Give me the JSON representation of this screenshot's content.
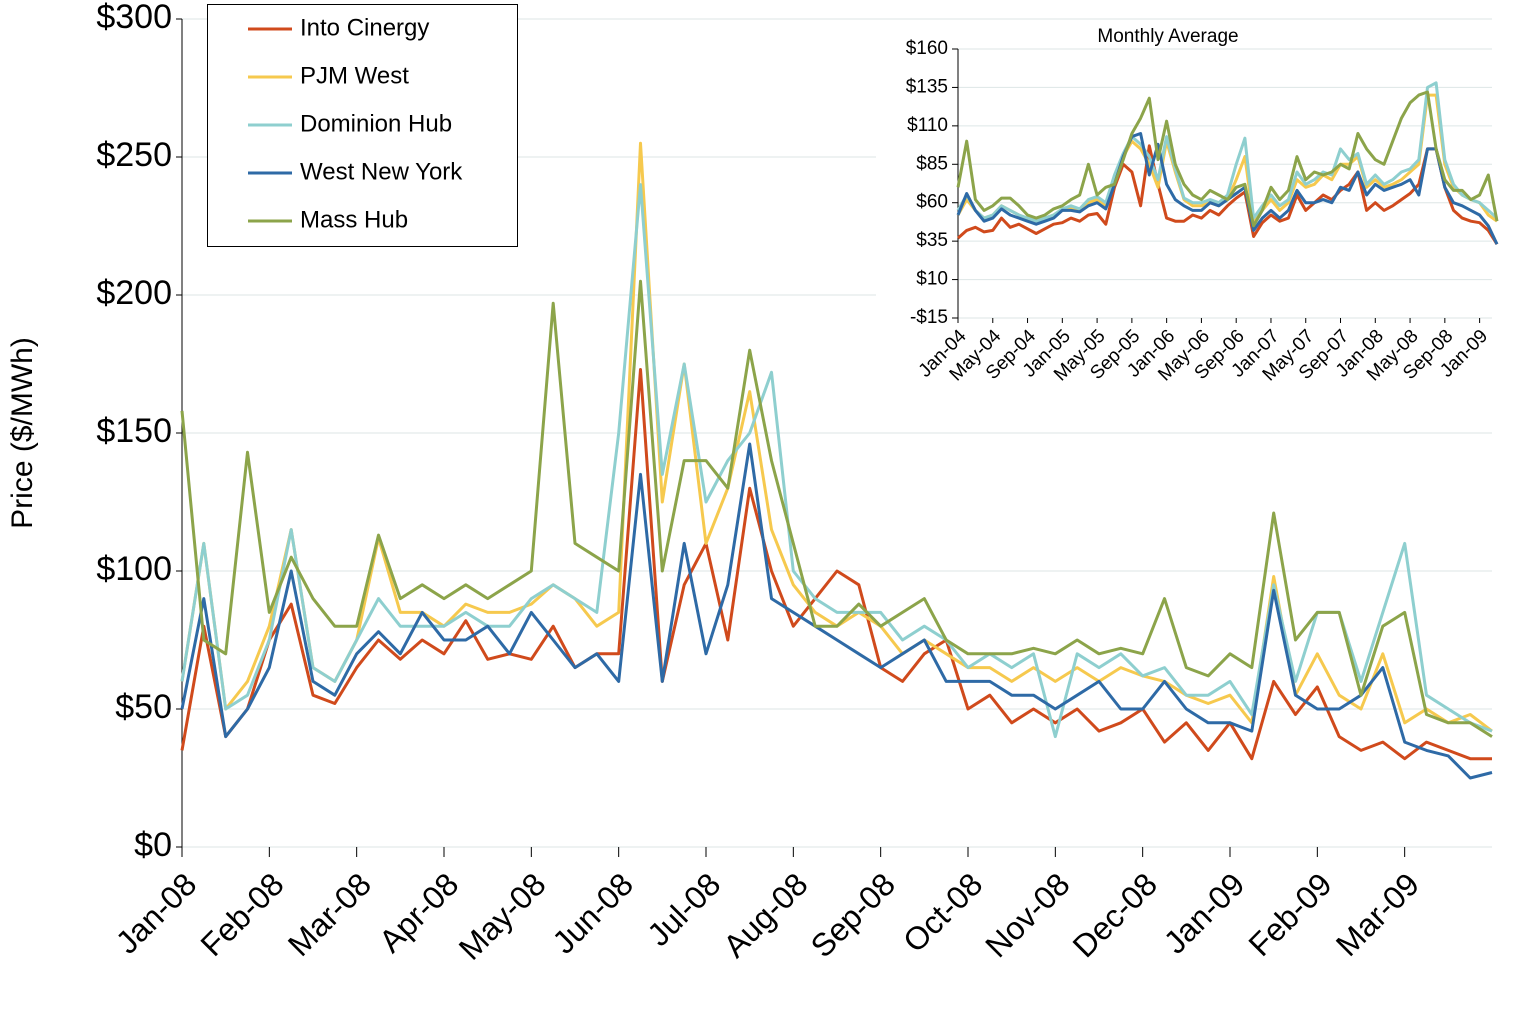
{
  "chart_data": [
    {
      "type": "line",
      "y_label": "Price ($/MWh)",
      "legend": "upper left",
      "grid": true,
      "categories": [
        "Jan-08",
        null,
        null,
        null,
        "Feb-08",
        null,
        null,
        null,
        "Mar-08",
        null,
        null,
        null,
        "Apr-08",
        null,
        null,
        null,
        "May-08",
        null,
        null,
        null,
        "Jun-08",
        null,
        null,
        null,
        "Jul-08",
        null,
        null,
        null,
        "Aug-08",
        null,
        null,
        null,
        "Sep-08",
        null,
        null,
        null,
        "Oct-08",
        null,
        null,
        null,
        "Nov-08",
        null,
        null,
        null,
        "Dec-08",
        null,
        null,
        null,
        "Jan-09",
        null,
        null,
        null,
        "Feb-09",
        null,
        null,
        null,
        "Mar-09",
        null,
        null,
        null,
        null
      ],
      "ylim": [
        0,
        300
      ],
      "yticks": [
        {
          "value": 0,
          "label": "$0"
        },
        {
          "value": 50,
          "label": "$50"
        },
        {
          "value": 100,
          "label": "$100"
        },
        {
          "value": 150,
          "label": "$150"
        },
        {
          "value": 200,
          "label": "$200"
        },
        {
          "value": 250,
          "label": "$250"
        },
        {
          "value": 300,
          "label": "$300"
        }
      ],
      "series": [
        {
          "name": "Into Cinergy",
          "color": "#d04a1c",
          "values": [
            35,
            80,
            40,
            50,
            75,
            88,
            55,
            52,
            65,
            75,
            68,
            75,
            70,
            82,
            68,
            70,
            68,
            80,
            65,
            70,
            70,
            173,
            60,
            95,
            110,
            75,
            130,
            100,
            80,
            90,
            100,
            95,
            65,
            60,
            70,
            75,
            50,
            55,
            45,
            50,
            45,
            50,
            42,
            45,
            50,
            38,
            45,
            35,
            45,
            32,
            60,
            48,
            58,
            40,
            35,
            38,
            32,
            38,
            35,
            32,
            32
          ]
        },
        {
          "name": "PJM West",
          "color": "#f6c94e",
          "values": [
            60,
            110,
            50,
            60,
            80,
            115,
            65,
            60,
            75,
            112,
            85,
            85,
            80,
            88,
            85,
            85,
            88,
            95,
            90,
            80,
            85,
            255,
            125,
            175,
            110,
            130,
            165,
            115,
            95,
            85,
            80,
            85,
            80,
            70,
            75,
            70,
            65,
            65,
            60,
            65,
            60,
            65,
            60,
            65,
            62,
            60,
            55,
            52,
            55,
            45,
            98,
            55,
            70,
            55,
            50,
            70,
            45,
            50,
            45,
            48,
            42
          ]
        },
        {
          "name": "Dominion Hub",
          "color": "#8ecfcf",
          "values": [
            60,
            110,
            50,
            55,
            75,
            115,
            65,
            60,
            75,
            90,
            80,
            80,
            80,
            85,
            80,
            80,
            90,
            95,
            90,
            85,
            150,
            240,
            135,
            175,
            125,
            140,
            150,
            172,
            100,
            90,
            85,
            85,
            85,
            75,
            80,
            75,
            65,
            70,
            65,
            70,
            40,
            70,
            65,
            70,
            62,
            65,
            55,
            55,
            60,
            48,
            95,
            60,
            85,
            85,
            60,
            85,
            110,
            55,
            50,
            45,
            42
          ]
        },
        {
          "name": "West New York",
          "color": "#2e6aa6",
          "values": [
            50,
            90,
            40,
            50,
            65,
            100,
            60,
            55,
            70,
            78,
            70,
            85,
            75,
            75,
            80,
            70,
            85,
            75,
            65,
            70,
            60,
            135,
            60,
            110,
            70,
            95,
            146,
            90,
            85,
            80,
            75,
            70,
            65,
            70,
            75,
            60,
            60,
            60,
            55,
            55,
            50,
            55,
            60,
            50,
            50,
            60,
            50,
            45,
            45,
            42,
            93,
            55,
            50,
            50,
            55,
            65,
            38,
            35,
            33,
            25,
            27
          ]
        },
        {
          "name": "Mass Hub",
          "color": "#8ca44a",
          "values": [
            158,
            75,
            70,
            143,
            85,
            105,
            90,
            80,
            80,
            113,
            90,
            95,
            90,
            95,
            90,
            95,
            100,
            197,
            110,
            105,
            100,
            205,
            100,
            140,
            140,
            130,
            180,
            140,
            110,
            80,
            80,
            88,
            80,
            85,
            90,
            75,
            70,
            70,
            70,
            72,
            70,
            75,
            70,
            72,
            70,
            90,
            65,
            62,
            70,
            65,
            121,
            75,
            85,
            85,
            55,
            80,
            85,
            48,
            45,
            45,
            40
          ]
        }
      ]
    },
    {
      "type": "line",
      "title": "Monthly Average",
      "grid": true,
      "categories": [
        "Jan-04",
        null,
        null,
        null,
        "May-04",
        null,
        null,
        null,
        "Sep-04",
        null,
        null,
        null,
        "Jan-05",
        null,
        null,
        null,
        "May-05",
        null,
        null,
        null,
        "Sep-05",
        null,
        null,
        null,
        "Jan-06",
        null,
        null,
        null,
        "May-06",
        null,
        null,
        null,
        "Sep-06",
        null,
        null,
        null,
        "Jan-07",
        null,
        null,
        null,
        "May-07",
        null,
        null,
        null,
        "Sep-07",
        null,
        null,
        null,
        "Jan-08",
        null,
        null,
        null,
        "May-08",
        null,
        null,
        null,
        "Sep-08",
        null,
        null,
        null,
        "Jan-09",
        null,
        null
      ],
      "ylim": [
        -15,
        160
      ],
      "yticks": [
        {
          "value": -15,
          "label": "-$15"
        },
        {
          "value": 10,
          "label": "$10"
        },
        {
          "value": 35,
          "label": "$35"
        },
        {
          "value": 60,
          "label": "$60"
        },
        {
          "value": 85,
          "label": "$85"
        },
        {
          "value": 110,
          "label": "$110"
        },
        {
          "value": 135,
          "label": "$135"
        },
        {
          "value": 160,
          "label": "$160"
        }
      ],
      "series": [
        {
          "color": "#d04a1c",
          "values": [
            37,
            42,
            44,
            41,
            42,
            50,
            44,
            46,
            43,
            40,
            43,
            46,
            47,
            50,
            48,
            52,
            53,
            46,
            70,
            85,
            80,
            58,
            97,
            72,
            50,
            48,
            48,
            52,
            50,
            55,
            52,
            58,
            63,
            67,
            38,
            47,
            52,
            48,
            50,
            65,
            55,
            60,
            65,
            62,
            68,
            72,
            80,
            55,
            60,
            55,
            58,
            62,
            66,
            72,
            95,
            95,
            70,
            55,
            50,
            48,
            47,
            42,
            33
          ]
        },
        {
          "color": "#f6c94e",
          "values": [
            52,
            62,
            55,
            50,
            52,
            58,
            55,
            52,
            50,
            48,
            50,
            52,
            55,
            56,
            55,
            60,
            62,
            58,
            75,
            90,
            100,
            95,
            85,
            70,
            100,
            80,
            62,
            58,
            58,
            60,
            58,
            62,
            75,
            90,
            48,
            55,
            62,
            55,
            60,
            75,
            70,
            72,
            78,
            75,
            85,
            85,
            90,
            70,
            75,
            70,
            72,
            75,
            80,
            85,
            130,
            130,
            85,
            70,
            65,
            62,
            60,
            52,
            48
          ]
        },
        {
          "color": "#8ecfcf",
          "values": [
            55,
            65,
            55,
            50,
            52,
            58,
            55,
            52,
            50,
            48,
            50,
            52,
            56,
            58,
            56,
            62,
            64,
            60,
            78,
            92,
            103,
            98,
            90,
            75,
            103,
            82,
            63,
            60,
            60,
            62,
            60,
            65,
            85,
            102,
            50,
            58,
            65,
            58,
            62,
            80,
            72,
            75,
            80,
            78,
            95,
            88,
            92,
            72,
            78,
            72,
            75,
            80,
            82,
            88,
            135,
            138,
            88,
            72,
            65,
            62,
            60,
            55,
            50
          ]
        },
        {
          "color": "#2e6aa6",
          "values": [
            52,
            66,
            55,
            48,
            50,
            56,
            52,
            50,
            48,
            46,
            48,
            50,
            55,
            55,
            54,
            58,
            60,
            56,
            72,
            90,
            103,
            105,
            78,
            98,
            72,
            62,
            58,
            55,
            55,
            60,
            58,
            62,
            66,
            70,
            42,
            50,
            55,
            50,
            55,
            68,
            60,
            60,
            62,
            60,
            70,
            68,
            80,
            65,
            72,
            68,
            70,
            72,
            75,
            65,
            95,
            95,
            70,
            60,
            58,
            55,
            52,
            45,
            33
          ]
        },
        {
          "color": "#8ca44a",
          "values": [
            70,
            100,
            62,
            55,
            58,
            63,
            63,
            58,
            52,
            50,
            52,
            56,
            58,
            62,
            65,
            85,
            65,
            70,
            72,
            88,
            105,
            115,
            128,
            88,
            113,
            85,
            72,
            65,
            62,
            68,
            65,
            62,
            70,
            72,
            45,
            55,
            70,
            62,
            68,
            90,
            75,
            80,
            78,
            80,
            85,
            82,
            105,
            95,
            88,
            85,
            100,
            115,
            125,
            130,
            132,
            95,
            75,
            68,
            68,
            62,
            65,
            78,
            48
          ]
        }
      ]
    }
  ]
}
